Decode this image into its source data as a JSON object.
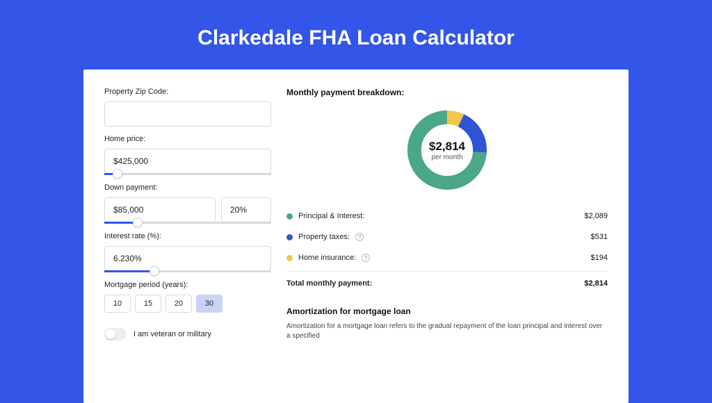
{
  "page": {
    "title": "Clarkedale FHA Loan Calculator",
    "background_color": "#3355e8",
    "card_background": "#ffffff"
  },
  "form": {
    "zip": {
      "label": "Property Zip Code:",
      "value": ""
    },
    "home_price": {
      "label": "Home price:",
      "value": "$425,000",
      "slider_pct": 8
    },
    "down_payment": {
      "label": "Down payment:",
      "amount": "$85,000",
      "percent": "20%",
      "slider_pct": 20
    },
    "interest": {
      "label": "Interest rate (%):",
      "value": "6.230%",
      "slider_pct": 30
    },
    "period": {
      "label": "Mortgage period (years):",
      "options": [
        "10",
        "15",
        "20",
        "30"
      ],
      "selected": "30"
    },
    "veteran": {
      "label": "I am veteran or military",
      "value": false
    }
  },
  "breakdown": {
    "title": "Monthly payment breakdown:",
    "donut": {
      "amount": "$2,814",
      "sub": "per month",
      "segments": [
        {
          "label": "Principal & Interest:",
          "value": "$2,089",
          "color": "#4aa789",
          "pct": 74
        },
        {
          "label": "Property taxes:",
          "value": "$531",
          "color": "#2f55d4",
          "pct": 19,
          "help": true
        },
        {
          "label": "Home insurance:",
          "value": "$194",
          "color": "#f0c94c",
          "pct": 7,
          "help": true
        }
      ],
      "stroke_width": 16
    },
    "total": {
      "label": "Total monthly payment:",
      "value": "$2,814"
    }
  },
  "amortization": {
    "title": "Amortization for mortgage loan",
    "body": "Amortization for a mortgage loan refers to the gradual repayment of the loan principal and interest over a specified"
  },
  "colors": {
    "accent": "#3355e8",
    "border": "#d6d9e0",
    "text": "#222222"
  }
}
